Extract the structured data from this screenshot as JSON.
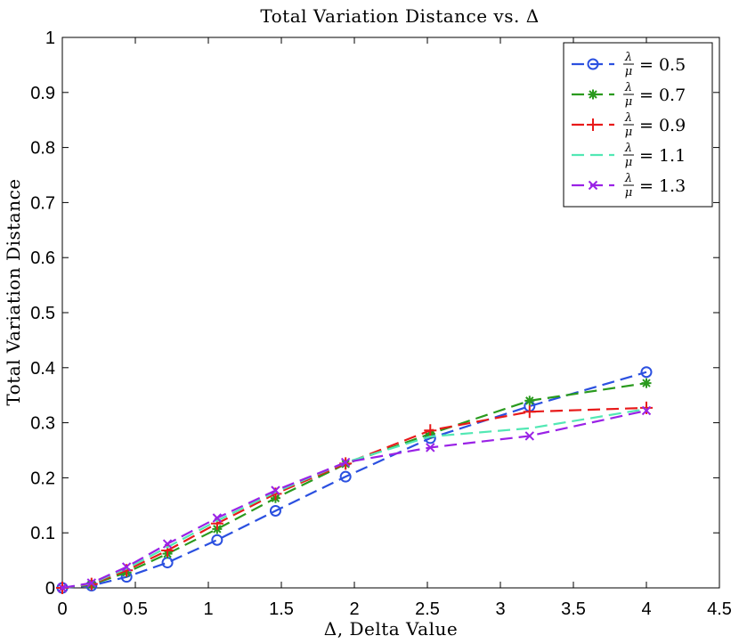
{
  "chart_data": {
    "type": "line",
    "title": "Total Variation Distance vs. Δ",
    "xlabel": "Δ, Delta Value",
    "ylabel": "Total Variation Distance",
    "xlim": [
      0,
      4.5
    ],
    "ylim": [
      0,
      1
    ],
    "xticks": [
      0,
      0.5,
      1,
      1.5,
      2,
      2.5,
      3,
      3.5,
      4,
      4.5
    ],
    "yticks": [
      0,
      0.1,
      0.2,
      0.3,
      0.4,
      0.5,
      0.6,
      0.7,
      0.8,
      0.9,
      1
    ],
    "xtick_labels": [
      "0",
      "0.5",
      "1",
      "1.5",
      "2",
      "2.5",
      "3",
      "3.5",
      "4",
      "4.5"
    ],
    "ytick_labels": [
      "0",
      "0.1",
      "0.2",
      "0.3",
      "0.4",
      "0.5",
      "0.6",
      "0.7",
      "0.8",
      "0.9",
      "1"
    ],
    "legend_position": "top-right",
    "series": [
      {
        "name": "λ/μ = 0.5",
        "frac_num": "λ",
        "frac_den": "μ",
        "value_text": "= 0.5",
        "color": "#2b50e0",
        "marker": "circle",
        "x": [
          0,
          0.2,
          0.44,
          0.72,
          1.06,
          1.46,
          1.94,
          2.52,
          3.2,
          4.0
        ],
        "y": [
          0,
          0.004,
          0.02,
          0.046,
          0.087,
          0.14,
          0.202,
          0.272,
          0.33,
          0.392
        ]
      },
      {
        "name": "λ/μ = 0.7",
        "frac_num": "λ",
        "frac_den": "μ",
        "value_text": "= 0.7",
        "color": "#2a9a1e",
        "marker": "asterisk",
        "x": [
          0,
          0.2,
          0.44,
          0.72,
          1.06,
          1.46,
          1.94,
          2.52,
          3.2,
          4.0
        ],
        "y": [
          0,
          0.006,
          0.028,
          0.062,
          0.107,
          0.163,
          0.225,
          0.28,
          0.34,
          0.372
        ]
      },
      {
        "name": "λ/μ = 0.9",
        "frac_num": "λ",
        "frac_den": "μ",
        "value_text": "= 0.9",
        "color": "#e81a1a",
        "marker": "plus",
        "x": [
          0,
          0.2,
          0.44,
          0.72,
          1.06,
          1.46,
          1.94,
          2.52,
          3.2,
          4.0
        ],
        "y": [
          0,
          0.007,
          0.032,
          0.068,
          0.117,
          0.171,
          0.226,
          0.286,
          0.32,
          0.327
        ]
      },
      {
        "name": "λ/μ = 1.1",
        "frac_num": "λ",
        "frac_den": "μ",
        "value_text": "= 1.1",
        "color": "#52e8b4",
        "marker": "none",
        "x": [
          0,
          0.2,
          0.44,
          0.72,
          1.06,
          1.46,
          1.94,
          2.52,
          3.2,
          4.0
        ],
        "y": [
          0,
          0.008,
          0.035,
          0.074,
          0.122,
          0.174,
          0.228,
          0.275,
          0.29,
          0.325
        ]
      },
      {
        "name": "λ/μ = 1.3",
        "frac_num": "λ",
        "frac_den": "μ",
        "value_text": "= 1.3",
        "color": "#9a22e6",
        "marker": "x",
        "x": [
          0,
          0.2,
          0.44,
          0.72,
          1.06,
          1.46,
          1.94,
          2.52,
          3.2,
          4.0
        ],
        "y": [
          0,
          0.009,
          0.038,
          0.08,
          0.127,
          0.177,
          0.228,
          0.255,
          0.276,
          0.322
        ]
      }
    ]
  }
}
